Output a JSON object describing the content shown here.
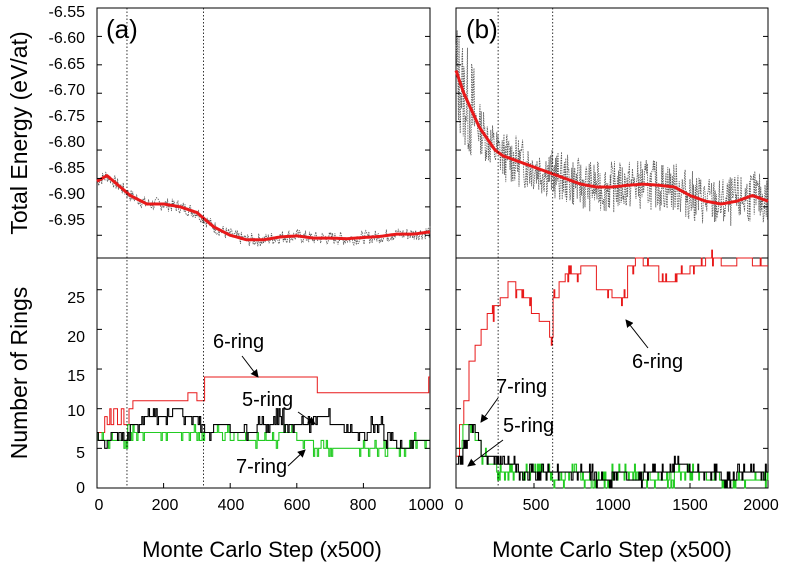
{
  "chart_data": {
    "type": "line",
    "shared": {
      "ylabel_energy": "Total Energy (eV/at)",
      "ylabel_rings": "Number of Rings",
      "energy_ylim": [
        -6.99,
        -6.55
      ],
      "energy_yticks": [
        -6.55,
        -6.6,
        -6.65,
        -6.7,
        -6.75,
        -6.8,
        -6.85,
        -6.9,
        -6.95
      ],
      "energy_yticklabels": [
        "-6.55",
        "-6.60",
        "-6.65",
        "-6.70",
        "-6.75",
        "-6.80",
        "-6.85",
        "-6.90",
        "-6.95"
      ],
      "rings_ylim": [
        0,
        29
      ],
      "rings_yticks": [
        0,
        5,
        10,
        15,
        20,
        25
      ],
      "rings_yticklabels": [
        "0",
        "5",
        "10",
        "15",
        "20",
        "25"
      ],
      "colors": {
        "energy_fit": "#e8191a",
        "energy_raw": "#555555",
        "ring6": "#e8191a",
        "ring5": "#000000",
        "ring7": "#22cc22",
        "guide": "#000000"
      }
    },
    "panels": [
      {
        "id": "a",
        "panel_label": "(a)",
        "xlabel": "Monte Carlo Step (x500)",
        "xlim": [
          0,
          1000
        ],
        "xticks": [
          0,
          200,
          400,
          600,
          800,
          1000
        ],
        "xticklabels": [
          "0",
          "200",
          "400",
          "600",
          "800",
          "1000"
        ],
        "vlines": [
          90,
          320
        ],
        "energy_fit": {
          "x": [
            0,
            30,
            60,
            100,
            150,
            200,
            250,
            300,
            350,
            400,
            450,
            500,
            550,
            600,
            650,
            700,
            750,
            800,
            850,
            900,
            950,
            1000
          ],
          "y": [
            -6.855,
            -6.845,
            -6.86,
            -6.88,
            -6.895,
            -6.895,
            -6.9,
            -6.91,
            -6.935,
            -6.95,
            -6.958,
            -6.958,
            -6.953,
            -6.951,
            -6.955,
            -6.955,
            -6.956,
            -6.954,
            -6.952,
            -6.948,
            -6.948,
            -6.944
          ]
        },
        "energy_raw": {
          "noise_amp": 0.012,
          "seed": 7
        },
        "rings": {
          "six": {
            "x": [
              0,
              20,
              30,
              35,
              40,
              50,
              60,
              70,
              80,
              95,
              105,
              110,
              125,
              135,
              250,
              270,
              290,
              300,
              320,
              330,
              340,
              560,
              570,
              650,
              660,
              990,
              995,
              1000
            ],
            "y": [
              7,
              9,
              8,
              10,
              8,
              10,
              8,
              10,
              8,
              10,
              11,
              11,
              11,
              11,
              11,
              12,
              12,
              11,
              14,
              14,
              14,
              14,
              14,
              14,
              12,
              12,
              14,
              14
            ]
          },
          "five": {
            "x": [
              0,
              40,
              80,
              100,
              140,
              200,
              230,
              260,
              300,
              320,
              350,
              400,
              440,
              480,
              530,
              560,
              600,
              650,
              700,
              740,
              780,
              820,
              860,
              900,
              940,
              990,
              1000
            ],
            "y": [
              6,
              7,
              6,
              8,
              9,
              9,
              10,
              9,
              8,
              7,
              8,
              7,
              7,
              8,
              9,
              8,
              8,
              9,
              8,
              7,
              7,
              8,
              6,
              5,
              6,
              6,
              6
            ]
          },
          "seven": {
            "x": [
              0,
              90,
              100,
              150,
              200,
              250,
              300,
              320,
              400,
              450,
              500,
              550,
              600,
              650,
              700,
              750,
              800,
              850,
              900,
              950,
              1000
            ],
            "y": [
              6,
              8,
              7,
              7,
              7,
              7,
              6,
              7,
              6,
              6,
              6,
              7,
              6,
              5,
              5,
              5,
              5,
              5,
              5,
              6,
              6
            ]
          }
        },
        "annotations": [
          {
            "text": "6-ring",
            "x": 350,
            "y": 15.5
          },
          {
            "text": "5-ring",
            "x": 440,
            "y": 10.2
          },
          {
            "text": "7-ring",
            "x": 420,
            "y": 3.6
          }
        ]
      },
      {
        "id": "b",
        "panel_label": "(b)",
        "xlabel": "Monte Carlo Step (x500)",
        "xlim": [
          0,
          2000
        ],
        "xticks": [
          0,
          500,
          1000,
          1500,
          2000
        ],
        "xticklabels": [
          "0",
          "500",
          "1000",
          "1500",
          "2000"
        ],
        "vlines": [
          270,
          620
        ],
        "energy_fit": {
          "x": [
            0,
            50,
            100,
            150,
            200,
            250,
            300,
            400,
            500,
            600,
            700,
            800,
            900,
            1000,
            1100,
            1200,
            1300,
            1400,
            1500,
            1600,
            1700,
            1800,
            1900,
            2000
          ],
          "y": [
            -6.66,
            -6.7,
            -6.73,
            -6.76,
            -6.78,
            -6.8,
            -6.81,
            -6.82,
            -6.83,
            -6.84,
            -6.85,
            -6.86,
            -6.865,
            -6.865,
            -6.862,
            -6.86,
            -6.862,
            -6.865,
            -6.88,
            -6.89,
            -6.895,
            -6.89,
            -6.88,
            -6.89
          ]
        },
        "energy_raw": {
          "noise_amp": 0.045,
          "seed": 13
        },
        "rings": {
          "six": {
            "x": [
              0,
              20,
              50,
              80,
              120,
              160,
              200,
              240,
              280,
              330,
              380,
              420,
              480,
              530,
              580,
              600,
              620,
              660,
              700,
              760,
              800,
              900,
              1000,
              1060,
              1100,
              1150,
              1200,
              1300,
              1400,
              1500,
              1600,
              1700,
              1800,
              1900,
              2000
            ],
            "y": [
              4,
              8,
              11,
              16,
              18,
              20,
              22,
              23,
              24,
              26,
              25,
              24,
              22,
              21,
              21,
              19,
              24,
              26,
              27,
              27,
              28,
              25,
              24,
              24,
              28,
              29,
              28,
              26,
              27,
              28,
              29,
              28,
              29,
              28,
              28
            ]
          },
          "five": {
            "x": [
              0,
              40,
              80,
              120,
              160,
              200,
              260,
              320,
              400,
              500,
              600,
              700,
              800,
              900,
              1000,
              1100,
              1200,
              1300,
              1400,
              1500,
              1600,
              1700,
              1800,
              1900,
              2000
            ],
            "y": [
              3,
              5,
              8,
              6,
              4,
              4,
              3,
              3,
              2,
              2,
              2,
              2,
              2,
              1,
              2,
              1,
              2,
              2,
              3,
              2,
              2,
              1,
              2,
              2,
              2
            ]
          },
          "seven": {
            "x": [
              0,
              40,
              80,
              120,
              160,
              200,
              260,
              320,
              400,
              500,
              600,
              700,
              800,
              900,
              1000,
              1100,
              1200,
              1300,
              1400,
              1500,
              1600,
              1700,
              1800,
              1900,
              2000
            ],
            "y": [
              5,
              8,
              8,
              6,
              4,
              3,
              2,
              2,
              2,
              2,
              1,
              2,
              1,
              1,
              2,
              2,
              1,
              1,
              2,
              2,
              1,
              1,
              1,
              1,
              1
            ]
          }
        },
        "annotations": [
          {
            "text": "6-ring",
            "x": 1200,
            "y": 21.5
          },
          {
            "text": "7-ring",
            "x": 210,
            "y": 16.6
          },
          {
            "text": "5-ring",
            "x": 300,
            "y": 11.8
          }
        ]
      }
    ]
  }
}
